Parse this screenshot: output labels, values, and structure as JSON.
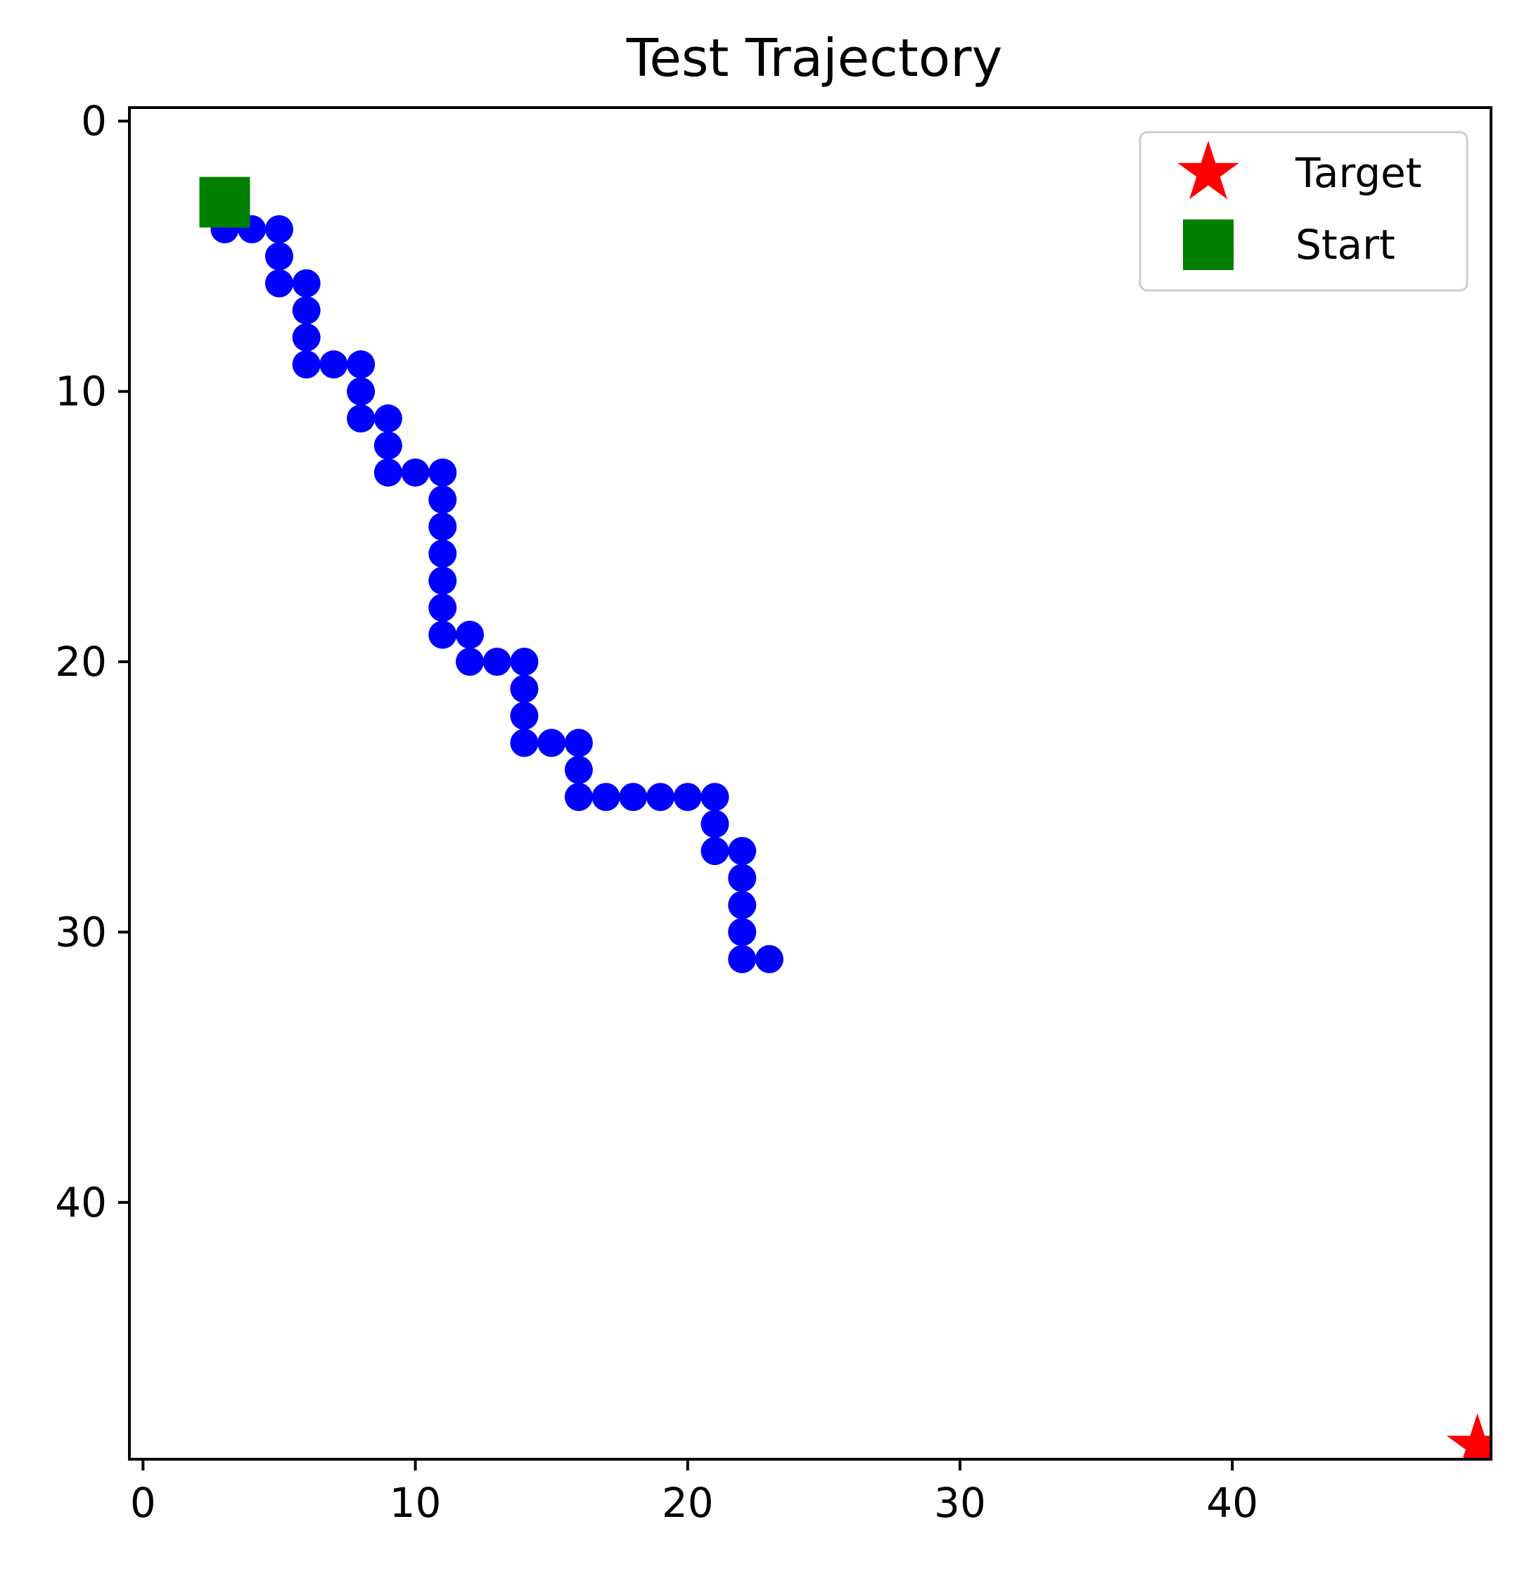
{
  "chart_data": {
    "type": "scatter",
    "title": "Test Trajectory",
    "xlabel": "",
    "ylabel": "",
    "xlim": [
      -0.5,
      49.5
    ],
    "ylim": [
      49.5,
      -0.5
    ],
    "y_inverted": true,
    "grid": false,
    "legend_position": "top-right",
    "x_ticks": [
      0,
      10,
      20,
      30,
      40
    ],
    "y_ticks": [
      0,
      10,
      20,
      30,
      40
    ],
    "x_tick_labels": [
      "0",
      "10",
      "20",
      "30",
      "40"
    ],
    "y_tick_labels": [
      "0",
      "10",
      "20",
      "30",
      "40"
    ],
    "series": [
      {
        "marker": "circle",
        "color": "#0000ff",
        "points": [
          [
            3,
            4
          ],
          [
            4,
            4
          ],
          [
            5,
            4
          ],
          [
            5,
            5
          ],
          [
            5,
            6
          ],
          [
            6,
            6
          ],
          [
            6,
            7
          ],
          [
            6,
            8
          ],
          [
            6,
            9
          ],
          [
            7,
            9
          ],
          [
            8,
            9
          ],
          [
            8,
            10
          ],
          [
            8,
            11
          ],
          [
            9,
            11
          ],
          [
            9,
            12
          ],
          [
            9,
            13
          ],
          [
            10,
            13
          ],
          [
            11,
            13
          ],
          [
            11,
            14
          ],
          [
            11,
            15
          ],
          [
            11,
            16
          ],
          [
            11,
            17
          ],
          [
            11,
            18
          ],
          [
            11,
            19
          ],
          [
            12,
            19
          ],
          [
            12,
            20
          ],
          [
            13,
            20
          ],
          [
            14,
            20
          ],
          [
            14,
            21
          ],
          [
            14,
            22
          ],
          [
            14,
            23
          ],
          [
            15,
            23
          ],
          [
            16,
            23
          ],
          [
            16,
            24
          ],
          [
            16,
            25
          ],
          [
            17,
            25
          ],
          [
            18,
            25
          ],
          [
            19,
            25
          ],
          [
            20,
            25
          ],
          [
            21,
            25
          ],
          [
            21,
            26
          ],
          [
            21,
            27
          ],
          [
            22,
            27
          ],
          [
            22,
            28
          ],
          [
            22,
            29
          ],
          [
            22,
            30
          ],
          [
            22,
            31
          ],
          [
            23,
            31
          ]
        ]
      },
      {
        "name": "Target",
        "marker": "star",
        "color": "#ff0000",
        "points": [
          [
            49,
            49
          ]
        ]
      },
      {
        "name": "Start",
        "marker": "square",
        "color": "#008000",
        "points": [
          [
            3,
            3
          ]
        ]
      }
    ],
    "legend": [
      {
        "label": "Target",
        "marker": "star",
        "color": "#ff0000"
      },
      {
        "label": "Start",
        "marker": "square",
        "color": "#008000"
      }
    ]
  }
}
